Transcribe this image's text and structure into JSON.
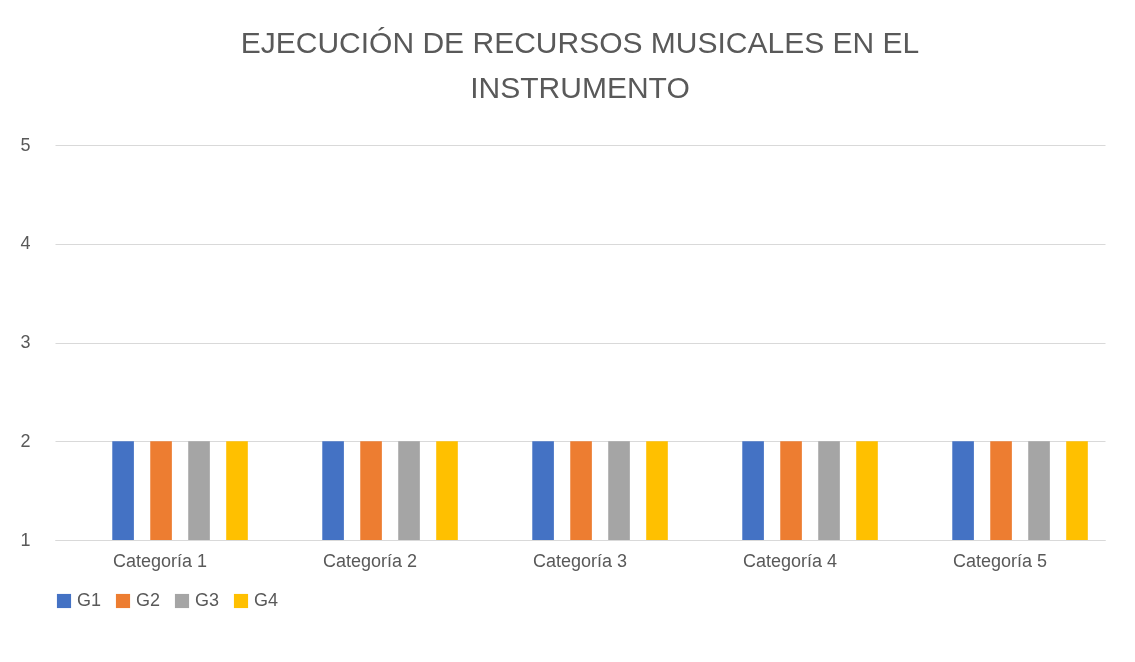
{
  "chart_data": {
    "type": "bar",
    "title": "EJECUCIÓN DE RECURSOS MUSICALES EN EL INSTRUMENTO",
    "categories": [
      "Categoría 1",
      "Categoría 2",
      "Categoría 3",
      "Categoría 4",
      "Categoría 5"
    ],
    "series": [
      {
        "name": "G1",
        "color": "#4472c4",
        "values": [
          2,
          2,
          2,
          2,
          2
        ]
      },
      {
        "name": "G2",
        "color": "#ed7d31",
        "values": [
          2,
          2,
          2,
          2,
          2
        ]
      },
      {
        "name": "G3",
        "color": "#a5a5a5",
        "values": [
          2,
          2,
          2,
          2,
          2
        ]
      },
      {
        "name": "G4",
        "color": "#ffc000",
        "values": [
          2,
          2,
          2,
          2,
          2
        ]
      }
    ],
    "ylim": [
      1,
      5
    ],
    "yticks": [
      1,
      2,
      3,
      4,
      5
    ],
    "grid": "y",
    "legend": "bottom"
  }
}
